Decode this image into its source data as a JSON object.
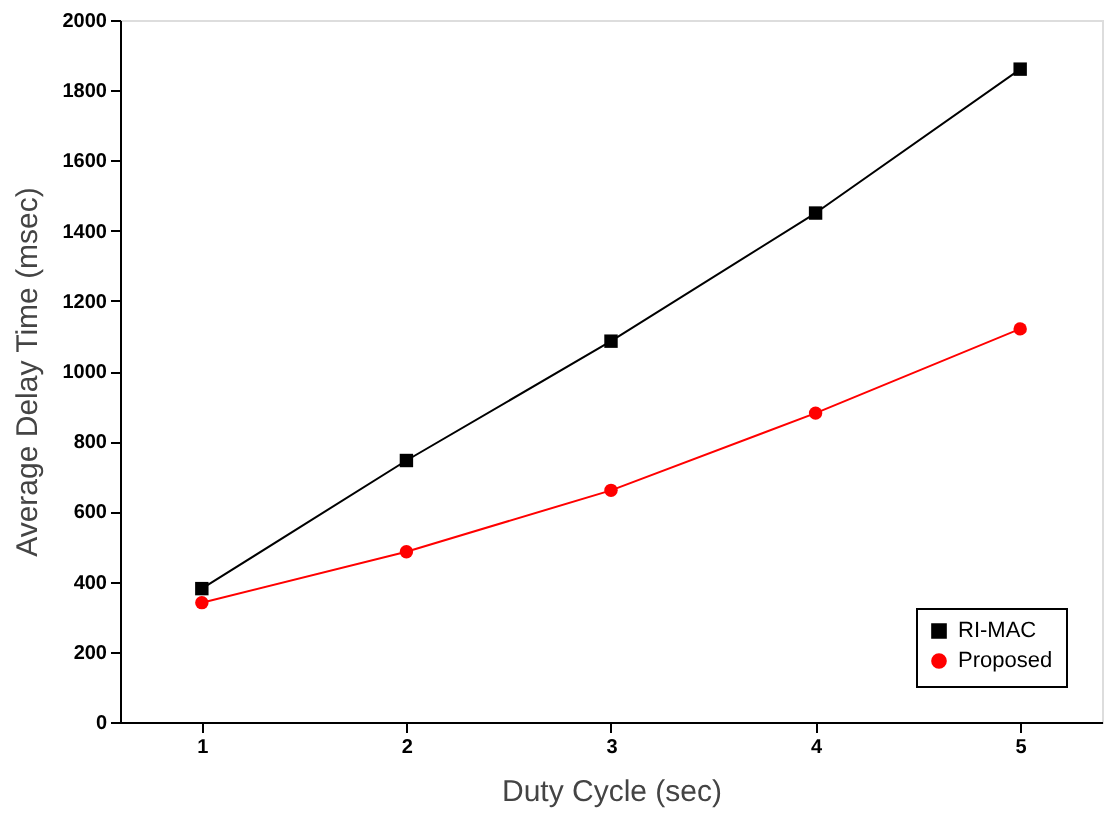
{
  "chart_data": {
    "type": "line",
    "xlabel": "Duty Cycle (sec)",
    "ylabel": "Average Delay Time (msec)",
    "x": [
      1,
      2,
      3,
      4,
      5
    ],
    "series": [
      {
        "name": "RI-MAC",
        "color": "#000000",
        "marker": "square",
        "values": [
          380,
          745,
          1085,
          1450,
          1860
        ]
      },
      {
        "name": "Proposed",
        "color": "#ff0000",
        "marker": "circle",
        "values": [
          340,
          485,
          660,
          880,
          1120
        ]
      }
    ],
    "xlim": [
      0.6,
      5.4
    ],
    "xticks": [
      1,
      2,
      3,
      4,
      5
    ],
    "ylim": [
      0,
      2000
    ],
    "yticks": [
      0,
      200,
      400,
      600,
      800,
      1000,
      1200,
      1400,
      1600,
      1800,
      2000
    ],
    "grid": false,
    "legend": "bottom right",
    "line_style": "solid"
  }
}
